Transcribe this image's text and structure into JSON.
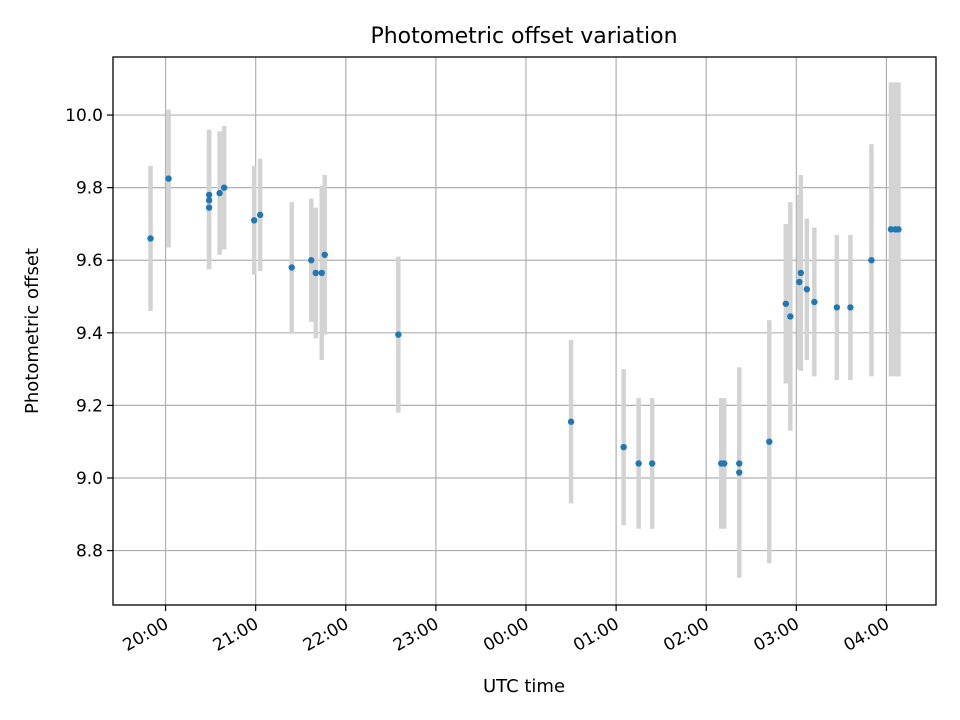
{
  "chart_data": {
    "type": "scatter",
    "title": "Photometric offset variation",
    "xlabel": "UTC time",
    "ylabel": "Photometric offset",
    "x_ticks": [
      "20:00",
      "21:00",
      "22:00",
      "23:00",
      "00:00",
      "01:00",
      "02:00",
      "03:00",
      "04:00"
    ],
    "y_ticks": [
      "8.8",
      "9.0",
      "9.2",
      "9.4",
      "9.6",
      "9.8",
      "10.0"
    ],
    "x_range": [
      "19:25",
      "04:33"
    ],
    "ylim": [
      8.65,
      10.16
    ],
    "grid": true,
    "colors": {
      "point": "#1f77b4",
      "errorbar": "#d3d3d3",
      "grid": "#b0b0b0"
    },
    "series": [
      {
        "points": [
          {
            "t": "19:50",
            "y": 9.66,
            "err": 0.2
          },
          {
            "t": "20:02",
            "y": 9.825,
            "err": 0.19
          },
          {
            "t": "20:29",
            "y": 9.78,
            "err": 0.18
          },
          {
            "t": "20:29",
            "y": 9.765,
            "err": 0.19
          },
          {
            "t": "20:29",
            "y": 9.745,
            "err": 0.17
          },
          {
            "t": "20:36",
            "y": 9.785,
            "err": 0.17
          },
          {
            "t": "20:39",
            "y": 9.8,
            "err": 0.17
          },
          {
            "t": "20:59",
            "y": 9.71,
            "err": 0.15
          },
          {
            "t": "21:03",
            "y": 9.725,
            "err": 0.155
          },
          {
            "t": "21:24",
            "y": 9.58,
            "err": 0.18
          },
          {
            "t": "21:37",
            "y": 9.6,
            "err": 0.17
          },
          {
            "t": "21:40",
            "y": 9.565,
            "err": 0.18
          },
          {
            "t": "21:44",
            "y": 9.565,
            "err": 0.24
          },
          {
            "t": "21:46",
            "y": 9.615,
            "err": 0.22
          },
          {
            "t": "22:35",
            "y": 9.395,
            "err": 0.215
          },
          {
            "t": "00:30",
            "y": 9.155,
            "err": 0.225
          },
          {
            "t": "01:05",
            "y": 9.085,
            "err": 0.215
          },
          {
            "t": "01:15",
            "y": 9.04,
            "err": 0.18
          },
          {
            "t": "01:24",
            "y": 9.04,
            "err": 0.18
          },
          {
            "t": "02:10",
            "y": 9.04,
            "err": 0.18
          },
          {
            "t": "02:12",
            "y": 9.04,
            "err": 0.18
          },
          {
            "t": "02:22",
            "y": 9.04,
            "err": 0.18
          },
          {
            "t": "02:22",
            "y": 9.015,
            "err": 0.29
          },
          {
            "t": "02:42",
            "y": 9.1,
            "err": 0.335
          },
          {
            "t": "02:53",
            "y": 9.48,
            "err": 0.22
          },
          {
            "t": "02:56",
            "y": 9.445,
            "err": 0.315
          },
          {
            "t": "03:02",
            "y": 9.54,
            "err": 0.24
          },
          {
            "t": "03:03",
            "y": 9.565,
            "err": 0.27
          },
          {
            "t": "03:07",
            "y": 9.52,
            "err": 0.195
          },
          {
            "t": "03:12",
            "y": 9.485,
            "err": 0.205
          },
          {
            "t": "03:27",
            "y": 9.47,
            "err": 0.2
          },
          {
            "t": "03:36",
            "y": 9.47,
            "err": 0.2
          },
          {
            "t": "03:50",
            "y": 9.6,
            "err": 0.32
          },
          {
            "t": "04:03",
            "y": 9.685,
            "err": 0.405
          },
          {
            "t": "04:06",
            "y": 9.685,
            "err": 0.405
          },
          {
            "t": "04:08",
            "y": 9.685,
            "err": 0.405
          }
        ]
      }
    ]
  }
}
